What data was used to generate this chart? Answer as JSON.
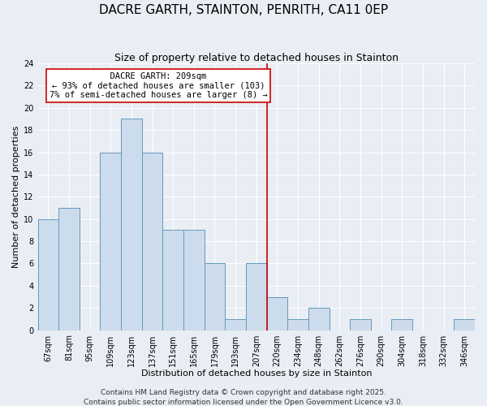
{
  "title": "DACRE GARTH, STAINTON, PENRITH, CA11 0EP",
  "subtitle": "Size of property relative to detached houses in Stainton",
  "xlabel": "Distribution of detached houses by size in Stainton",
  "ylabel": "Number of detached properties",
  "bin_labels": [
    "67sqm",
    "81sqm",
    "95sqm",
    "109sqm",
    "123sqm",
    "137sqm",
    "151sqm",
    "165sqm",
    "179sqm",
    "193sqm",
    "207sqm",
    "220sqm",
    "234sqm",
    "248sqm",
    "262sqm",
    "276sqm",
    "290sqm",
    "304sqm",
    "318sqm",
    "332sqm",
    "346sqm"
  ],
  "bar_values": [
    10,
    11,
    0,
    16,
    19,
    16,
    9,
    9,
    6,
    1,
    6,
    3,
    1,
    2,
    0,
    1,
    0,
    1,
    0,
    0,
    1
  ],
  "bar_color": "#ccdcec",
  "bar_edge_color": "#6699bb",
  "vline_x_index": 10.5,
  "vline_color": "#cc0000",
  "ylim": [
    0,
    24
  ],
  "yticks": [
    0,
    2,
    4,
    6,
    8,
    10,
    12,
    14,
    16,
    18,
    20,
    22,
    24
  ],
  "annotation_title": "DACRE GARTH: 209sqm",
  "annotation_line1": "← 93% of detached houses are smaller (103)",
  "annotation_line2": "7% of semi-detached houses are larger (8) →",
  "annotation_box_color": "#ffffff",
  "annotation_box_edge": "#cc0000",
  "footer1": "Contains HM Land Registry data © Crown copyright and database right 2025.",
  "footer2": "Contains public sector information licensed under the Open Government Licence v3.0.",
  "background_color": "#e8eef4",
  "plot_bg_color": "#e8eef4",
  "grid_color": "#ffffff",
  "title_fontsize": 11,
  "subtitle_fontsize": 9,
  "axis_label_fontsize": 8,
  "tick_fontsize": 7,
  "annot_fontsize": 7.5,
  "footer_fontsize": 6.5
}
